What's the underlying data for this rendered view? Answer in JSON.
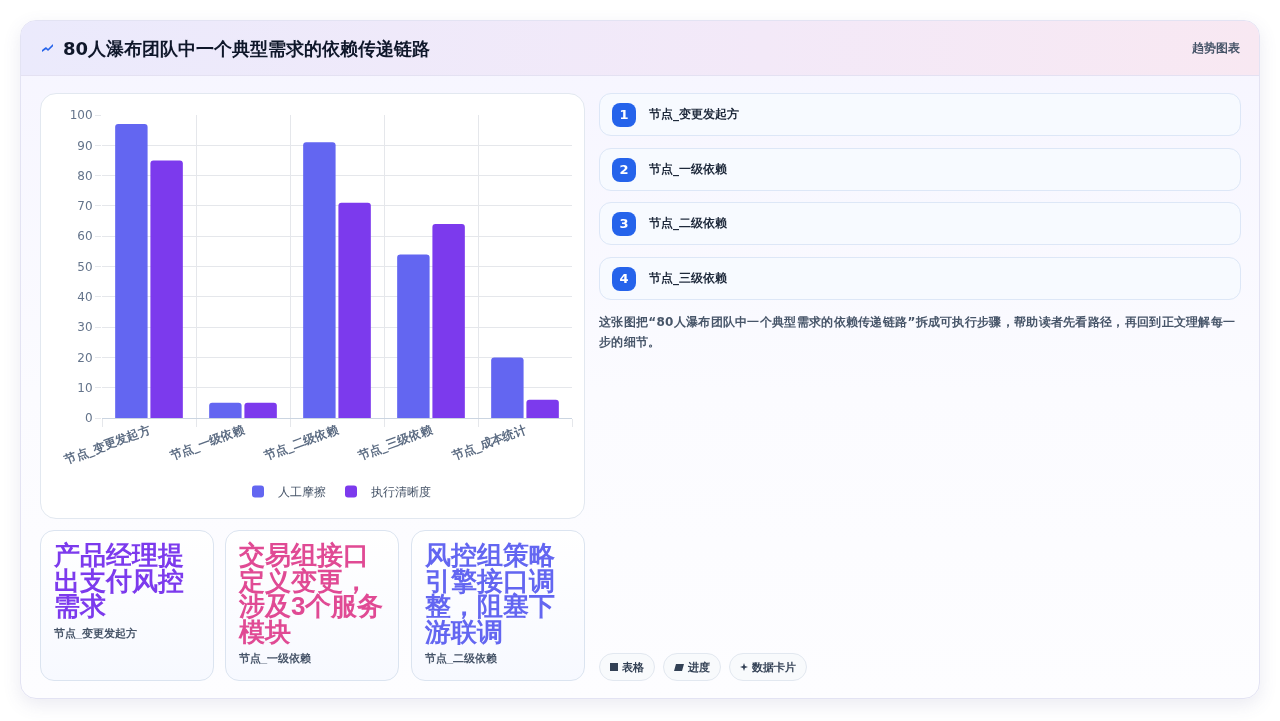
{
  "chart_data": [
    {
      "type": "other",
      "title": "80人瀑布团队中一个典型需求的依赖传递链路",
      "annotations": [
        "趋势图表"
      ]
    },
    {
      "type": "bar",
      "categories": [
        "节点_变更发起方",
        "节点_一级依赖",
        "节点_二级依赖",
        "节点_三级依赖",
        "节点_成本统计"
      ],
      "series": [
        {
          "name": "人工摩擦",
          "color": "#6366f1",
          "values": [
            97,
            5,
            91,
            54,
            20
          ]
        },
        {
          "name": "执行清晰度",
          "color": "#7c3aed",
          "values": [
            85,
            5,
            71,
            64,
            6
          ]
        }
      ],
      "ylim": [
        0,
        100
      ],
      "yticks": [
        0,
        10,
        20,
        30,
        40,
        50,
        60,
        70,
        80,
        90,
        100
      ],
      "grid": true,
      "legend": "bottom"
    },
    {
      "type": "other",
      "title": "节点_变更发起方",
      "annotations": [
        "1"
      ]
    },
    {
      "type": "other",
      "title": "节点_一级依赖",
      "annotations": [
        "2"
      ]
    },
    {
      "type": "other",
      "title": "节点_二级依赖",
      "annotations": [
        "3"
      ]
    },
    {
      "type": "other",
      "title": "节点_三级依赖",
      "annotations": [
        "4"
      ]
    },
    {
      "type": "other",
      "annotations": [
        "这张图把“80人瀑布团队中一个典型需求的依赖传递链路”拆成可执行步骤，帮助读者先看路径，再回到正文理解每一步的细节。"
      ]
    },
    {
      "type": "other",
      "title": "产品经理提出支付风控需求",
      "subtitle": "节点_变更发起方",
      "color": "#7c3aed"
    },
    {
      "type": "other",
      "title": "交易组接口定义变更，涉及3个服务模块",
      "subtitle": "节点_一级依赖",
      "color": "#e04a94"
    },
    {
      "type": "other",
      "title": "风控组策略引擎接口调整，阻塞下游联调",
      "subtitle": "节点_二级依赖",
      "color": "#6366f1"
    },
    {
      "type": "other",
      "annotations": [
        "表格",
        "进度",
        "数据卡片"
      ]
    }
  ]
}
